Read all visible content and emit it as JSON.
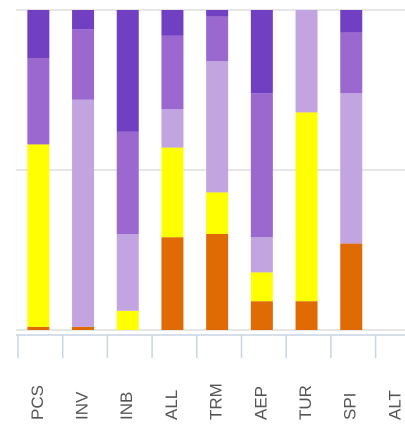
{
  "chart_data": {
    "type": "stacked_bar",
    "categories": [
      "PCS",
      "INV",
      "INB",
      "ALL",
      "TRM",
      "AEP",
      "TUR",
      "SPI",
      "ALT"
    ],
    "series": [
      {
        "color": "#e06b05",
        "values": [
          1,
          1,
          0,
          29,
          30,
          9,
          9,
          27,
          null
        ]
      },
      {
        "color": "#ffff00",
        "values": [
          57,
          0,
          6,
          28,
          13,
          9,
          59,
          0,
          null
        ]
      },
      {
        "color": "#c2a5e0",
        "values": [
          0,
          71,
          24,
          12,
          41,
          11,
          32,
          47,
          null
        ]
      },
      {
        "color": "#9a68cf",
        "values": [
          27,
          22,
          32,
          23,
          14,
          45,
          0,
          19,
          null
        ]
      },
      {
        "color": "#7140c2",
        "values": [
          15,
          6,
          38,
          8,
          2,
          26,
          0,
          7,
          null
        ]
      }
    ],
    "ylim": [
      0,
      100
    ],
    "yticks": [
      0,
      50,
      100
    ],
    "grid": true
  }
}
